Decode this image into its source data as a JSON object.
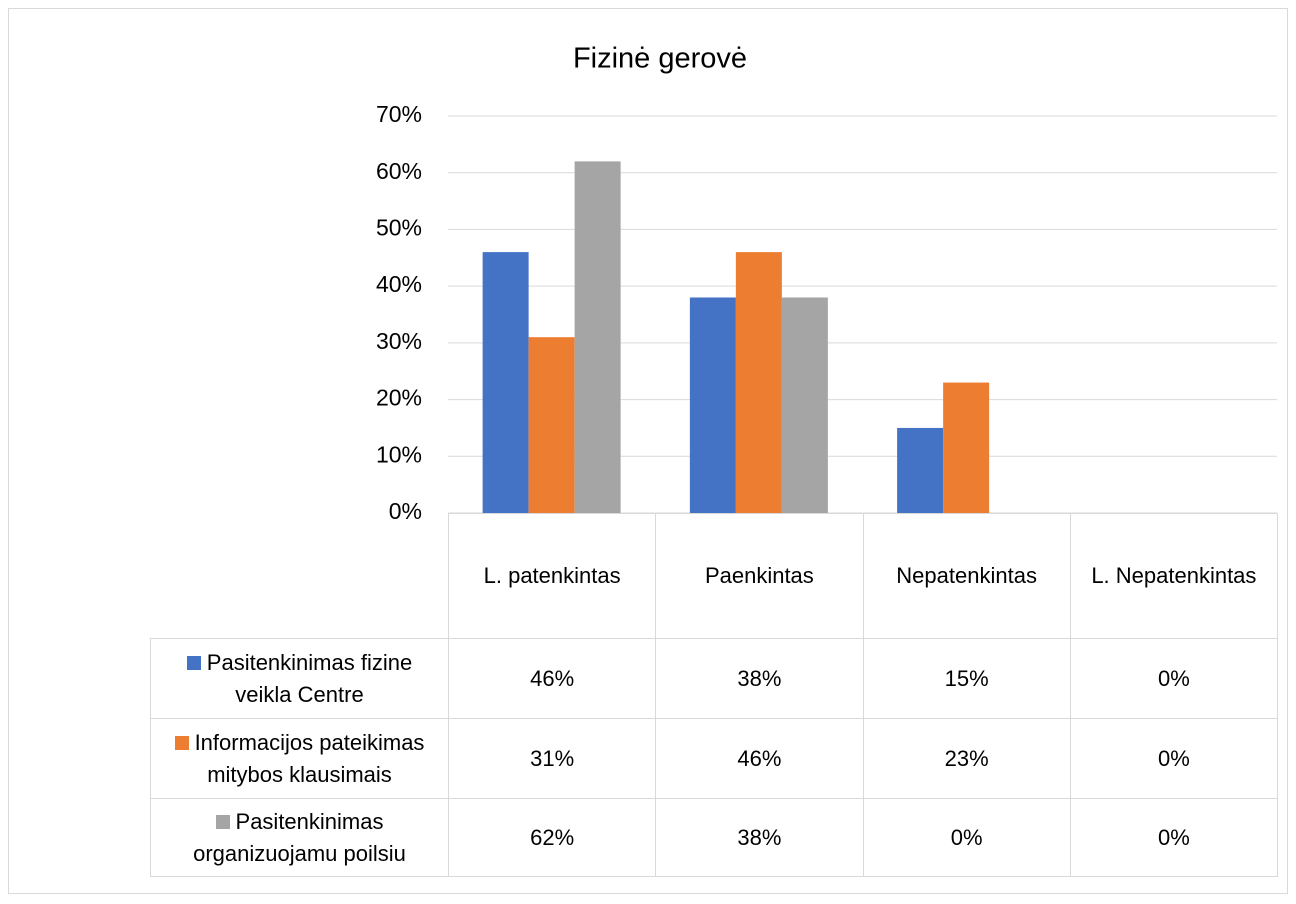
{
  "chart_data": {
    "type": "bar",
    "title": "Fizinė gerovė",
    "categories": [
      "L. patenkintas",
      "Paenkintas",
      "Nepatenkintas",
      "L. Nepatenkintas"
    ],
    "series": [
      {
        "name": "Pasitenkinimas fizine veikla Centre",
        "color": "#4472c4",
        "values": [
          46,
          38,
          15,
          0
        ],
        "value_labels": [
          "46%",
          "38%",
          "15%",
          "0%"
        ]
      },
      {
        "name": "Informacijos pateikimas mitybos klausimais",
        "color": "#ed7d31",
        "values": [
          31,
          46,
          23,
          0
        ],
        "value_labels": [
          "31%",
          "46%",
          "23%",
          "0%"
        ]
      },
      {
        "name": "Pasitenkinimas organizuojamu poilsiu",
        "color": "#a5a5a5",
        "values": [
          62,
          38,
          0,
          0
        ],
        "value_labels": [
          "62%",
          "38%",
          "0%",
          "0%"
        ]
      }
    ],
    "ylim": [
      0,
      70
    ],
    "yticks": [
      {
        "value": 0,
        "label": "0%"
      },
      {
        "value": 10,
        "label": "10%"
      },
      {
        "value": 20,
        "label": "20%"
      },
      {
        "value": 30,
        "label": "30%"
      },
      {
        "value": 40,
        "label": "40%"
      },
      {
        "value": 50,
        "label": "50%"
      },
      {
        "value": 60,
        "label": "60%"
      },
      {
        "value": 70,
        "label": "70%"
      }
    ],
    "grid": true
  }
}
